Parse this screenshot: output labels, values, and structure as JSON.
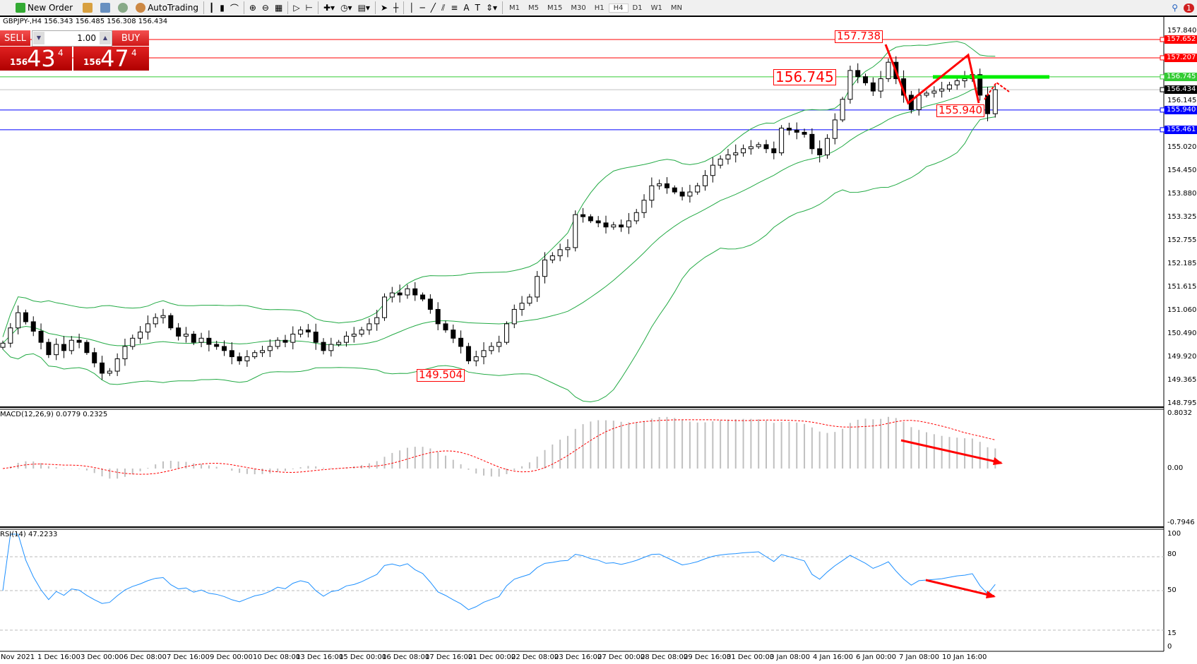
{
  "toolbar": {
    "new_order": "New Order",
    "autotrading": "AutoTrading",
    "timeframes": [
      "M1",
      "M5",
      "M15",
      "M30",
      "H1",
      "H4",
      "D1",
      "W1",
      "MN"
    ],
    "active_timeframe": "H4",
    "notification_count": "1"
  },
  "symbol_info": "GBPJPY-,H4  156.343 156.485 156.308 156.434",
  "one_click": {
    "sell_label": "SELL",
    "buy_label": "BUY",
    "lot": "1.00",
    "sell_prefix": "156",
    "sell_big": "43",
    "sell_sup": "4",
    "buy_prefix": "156",
    "buy_big": "47",
    "buy_sup": "4"
  },
  "price_axis_labels": [
    "157.840",
    "156.145",
    "155.020",
    "154.450",
    "153.880",
    "153.325",
    "152.755",
    "152.185",
    "151.615",
    "151.060",
    "150.490",
    "149.920",
    "149.365",
    "148.795"
  ],
  "hlines": [
    {
      "price": "157.652",
      "color": "#ff0000"
    },
    {
      "price": "157.207",
      "color": "#ff0000"
    },
    {
      "price": "156.745",
      "color": "#33cc33"
    },
    {
      "price": "156.434",
      "color": "#000000",
      "line": "#c0c0c0"
    },
    {
      "price": "155.940",
      "color": "#0000ff"
    },
    {
      "price": "155.461",
      "color": "#0000ff"
    }
  ],
  "annotations": {
    "high_label": "157.738",
    "level_label": "156.745",
    "support_label": "155.940",
    "low_label": "149.504"
  },
  "macd": {
    "title": "MACD(12,26,9) 0.0779 0.2325",
    "axis": [
      "0.8032",
      "0.00",
      "-0.7946"
    ]
  },
  "rsi": {
    "title": "RSI(14) 47.2233",
    "axis": [
      "100",
      "80",
      "50",
      "15",
      "0"
    ]
  },
  "time_labels": [
    "Nov 2021",
    "1 Dec 16:00",
    "3 Dec 00:00",
    "6 Dec 08:00",
    "7 Dec 16:00",
    "9 Dec 00:00",
    "10 Dec 08:00",
    "13 Dec 16:00",
    "15 Dec 00:00",
    "16 Dec 08:00",
    "17 Dec 16:00",
    "21 Dec 00:00",
    "22 Dec 08:00",
    "23 Dec 16:00",
    "27 Dec 00:00",
    "28 Dec 08:00",
    "29 Dec 16:00",
    "31 Dec 00:00",
    "3 Jan 08:00",
    "4 Jan 16:00",
    "6 Jan 00:00",
    "7 Jan 08:00",
    "10 Jan 16:00"
  ],
  "chart_data": {
    "type": "candlestick",
    "symbol": "GBPJPY-",
    "timeframe": "H4",
    "ylim": [
      148.795,
      157.84
    ],
    "indicators": [
      "Bollinger Bands (20,2)",
      "MACD(12,26,9)",
      "RSI(14)"
    ],
    "closes": [
      150.28,
      150.65,
      151.02,
      150.8,
      150.57,
      150.3,
      150.0,
      150.25,
      150.1,
      150.35,
      150.3,
      150.05,
      149.8,
      149.55,
      149.6,
      149.9,
      150.2,
      150.4,
      150.55,
      150.75,
      150.9,
      150.95,
      150.65,
      150.45,
      150.5,
      150.3,
      150.4,
      150.25,
      150.2,
      150.1,
      149.95,
      149.85,
      149.95,
      150.05,
      150.1,
      150.2,
      150.35,
      150.3,
      150.5,
      150.6,
      150.55,
      150.3,
      150.1,
      150.25,
      150.3,
      150.45,
      150.5,
      150.6,
      150.75,
      150.9,
      151.4,
      151.5,
      151.45,
      151.6,
      151.45,
      151.35,
      151.1,
      150.75,
      150.6,
      150.4,
      150.2,
      149.85,
      149.95,
      150.1,
      150.2,
      150.3,
      150.75,
      151.1,
      151.25,
      151.4,
      151.9,
      152.3,
      152.4,
      152.55,
      152.6,
      153.4,
      153.35,
      153.25,
      153.2,
      153.1,
      153.15,
      153.1,
      153.25,
      153.45,
      153.75,
      154.1,
      154.15,
      154.05,
      153.95,
      153.85,
      153.95,
      154.1,
      154.35,
      154.6,
      154.75,
      154.85,
      154.9,
      155.0,
      155.05,
      155.1,
      155.0,
      154.9,
      155.5,
      155.45,
      155.4,
      155.35,
      155.0,
      154.85,
      155.25,
      155.7,
      156.2,
      156.9,
      156.75,
      156.6,
      156.4,
      156.7,
      157.1,
      156.7,
      156.3,
      155.95,
      156.3,
      156.35,
      156.4,
      156.45,
      156.55,
      156.65,
      156.7,
      156.8,
      156.3,
      155.85,
      156.434
    ]
  },
  "colors": {
    "bands": "#22aa44",
    "macd_signal": "#ff0000",
    "macd_hist": "#c0c0c0",
    "rsi": "#1e90ff",
    "drawing": "#ff0000",
    "support_zone": "#00ee00"
  }
}
